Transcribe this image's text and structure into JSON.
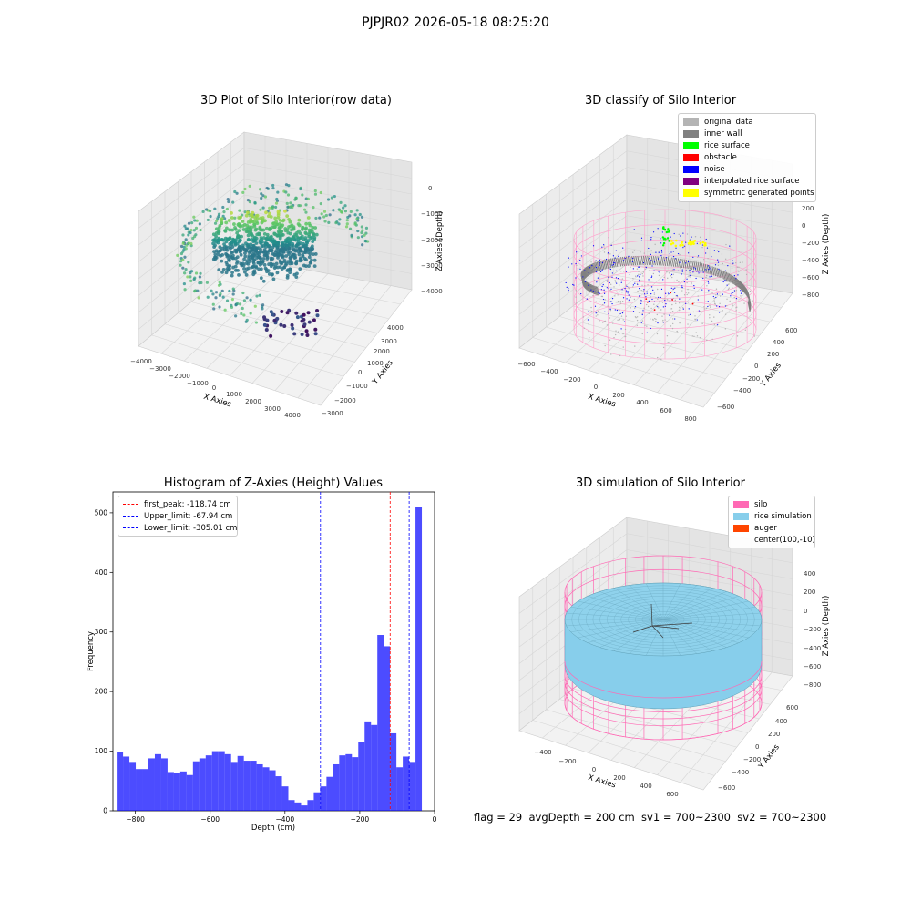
{
  "figure": {
    "suptitle": "PJPJR02 2026-05-18 08:25:20",
    "footer": "flag = 29  avgDepth = 200 cm  sv1 = 700~2300  sv2 = 700~2300"
  },
  "panel1": {
    "title": "3D Plot of Silo Interior(row data)",
    "xlabel": "X Axies",
    "ylabel": "Y Axies",
    "zlabel": "Z Axies (Depth)",
    "xticks": [
      "−4000",
      "−3000",
      "−2000",
      "−1000",
      "0",
      "1000",
      "2000",
      "3000",
      "4000"
    ],
    "yticks": [
      "−3000",
      "−2000",
      "−1000",
      "0",
      "1000",
      "2000",
      "3000",
      "4000"
    ],
    "zticks": [
      "0",
      "−1000",
      "−2000",
      "−3000",
      "−4000"
    ]
  },
  "panel2": {
    "title": "3D classify of Silo Interior",
    "xlabel": "X Axies",
    "ylabel": "Y Axies",
    "zlabel": "Z Axies (Depth)",
    "xticks": [
      "−600",
      "−400",
      "−200",
      "0",
      "200",
      "400",
      "600",
      "800"
    ],
    "yticks": [
      "−600",
      "−400",
      "−200",
      "0",
      "200",
      "400",
      "600"
    ],
    "zticks": [
      "200",
      "0",
      "−200",
      "−400",
      "−600",
      "−800"
    ],
    "legend": [
      {
        "label": "original data",
        "color": "#b4b4b4"
      },
      {
        "label": "inner wall",
        "color": "#808080"
      },
      {
        "label": "rice surface",
        "color": "#00ff00"
      },
      {
        "label": "obstacle",
        "color": "#ff0000"
      },
      {
        "label": "noise",
        "color": "#0000ff"
      },
      {
        "label": "interpolated rice surface",
        "color": "#800080"
      },
      {
        "label": "symmetric generated points",
        "color": "#ffff00"
      }
    ]
  },
  "panel4": {
    "title": "3D simulation of Silo Interior",
    "xlabel": "X Axies",
    "ylabel": "Y Axies",
    "zlabel": "Z Axies (Depth)",
    "xticks": [
      "−400",
      "−200",
      "0",
      "200",
      "400",
      "600"
    ],
    "yticks": [
      "−600",
      "−400",
      "−200",
      "0",
      "200",
      "400",
      "600"
    ],
    "zticks": [
      "400",
      "200",
      "0",
      "−200",
      "−400",
      "−600",
      "−800"
    ],
    "legend": [
      {
        "label": "silo",
        "color": "#ff69b4"
      },
      {
        "label": "rice simulation",
        "color": "#87ceeb"
      },
      {
        "label": "auger",
        "color": "#ff4500"
      },
      {
        "label": "center(100,-10)",
        "color": ""
      }
    ]
  },
  "chart_data": [
    {
      "type": "bar",
      "title": "Histogram of Z-Axies (Height) Values",
      "xlabel": "Depth (cm)",
      "ylabel": "Frequency",
      "xlim": [
        -860,
        0
      ],
      "ylim": [
        0,
        535
      ],
      "xticks": [
        -800,
        -600,
        -400,
        -200,
        0
      ],
      "yticks": [
        0,
        100,
        200,
        300,
        400,
        500
      ],
      "bar_color": "#0000ff",
      "bin_start": -850,
      "bin_width": 17,
      "values": [
        98,
        91,
        82,
        70,
        70,
        88,
        95,
        88,
        65,
        63,
        66,
        60,
        83,
        88,
        93,
        100,
        100,
        95,
        82,
        92,
        84,
        84,
        78,
        73,
        68,
        58,
        41,
        18,
        14,
        9,
        18,
        31,
        41,
        57,
        78,
        93,
        95,
        90,
        115,
        150,
        144,
        295,
        276,
        130,
        73,
        91,
        82,
        510
      ],
      "vlines": [
        {
          "label": "first_peak: -118.74 cm",
          "x": -118.74,
          "color": "#ff0000"
        },
        {
          "label": "Upper_limit: -67.94 cm",
          "x": -67.94,
          "color": "#0000ff"
        },
        {
          "label": "Lower_limit: -305.01 cm",
          "x": -305.01,
          "color": "#0000ff"
        }
      ],
      "legend_position": "upper left"
    }
  ]
}
